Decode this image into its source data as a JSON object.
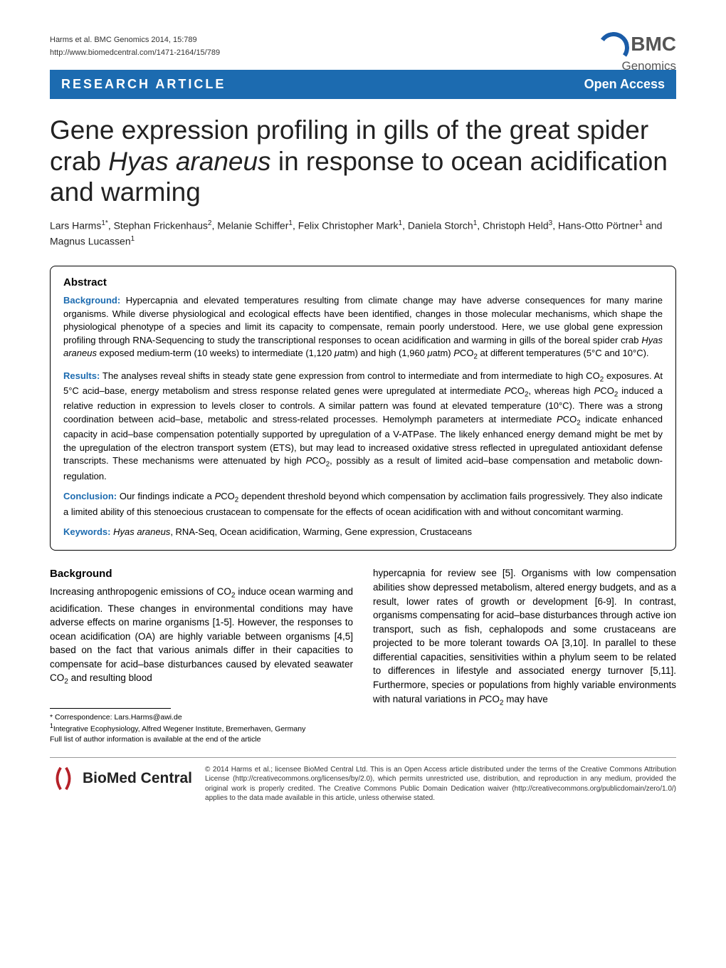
{
  "meta": {
    "citation": "Harms et al. BMC Genomics 2014, 15:789",
    "url": "http://www.biomedcentral.com/1471-2164/15/789"
  },
  "logo": {
    "brand_prefix": "BMC",
    "brand_suffix": "Genomics",
    "arc_color": "#1a5ca8",
    "text_color": "#555555"
  },
  "banner": {
    "left": "RESEARCH ARTICLE",
    "right": "Open Access",
    "bg_color": "#1c6bb0",
    "text_color": "#ffffff"
  },
  "title": {
    "pre_italic": "Gene expression profiling in gills of the great spider crab ",
    "italic": "Hyas araneus",
    "post_italic": " in response to ocean acidification and warming",
    "fontsize": 37,
    "color": "#222222"
  },
  "authors_html": "Lars Harms<sup>1*</sup>, Stephan Frickenhaus<sup>2</sup>, Melanie Schiffer<sup>1</sup>, Felix Christopher Mark<sup>1</sup>, Daniela Storch<sup>1</sup>, Christoph Held<sup>3</sup>, Hans-Otto Pörtner<sup>1</sup> and Magnus Lucassen<sup>1</sup>",
  "abstract": {
    "heading": "Abstract",
    "label_color": "#1c6bb0",
    "background": {
      "label": "Background:",
      "text": " Hypercapnia and elevated temperatures resulting from climate change may have adverse consequences for many marine organisms. While diverse physiological and ecological effects have been identified, changes in those molecular mechanisms, which shape the physiological phenotype of a species and limit its capacity to compensate, remain poorly understood. Here, we use global gene expression profiling through RNA-Sequencing to study the transcriptional responses to ocean acidification and warming in gills of the boreal spider crab <em>Hyas araneus</em> exposed medium-term (10 weeks) to intermediate (1,120 <em>μ</em>atm) and high (1,960 <em>μ</em>atm) <em>P</em>CO<sub>2</sub> at different temperatures (5°C and 10°C)."
    },
    "results": {
      "label": "Results:",
      "text": " The analyses reveal shifts in steady state gene expression from control to intermediate and from intermediate to high CO<sub>2</sub> exposures. At 5°C acid–base, energy metabolism and stress response related genes were upregulated at intermediate <em>P</em>CO<sub>2</sub>, whereas high <em>P</em>CO<sub>2</sub> induced a relative reduction in expression to levels closer to controls. A similar pattern was found at elevated temperature (10°C). There was a strong coordination between acid–base, metabolic and stress-related processes. Hemolymph parameters at intermediate <em>P</em>CO<sub>2</sub> indicate enhanced capacity in acid–base compensation potentially supported by upregulation of a V-ATPase. The likely enhanced energy demand might be met by the upregulation of the electron transport system (ETS), but may lead to increased oxidative stress reflected in upregulated antioxidant defense transcripts. These mechanisms were attenuated by high <em>P</em>CO<sub>2</sub>, possibly as a result of limited acid–base compensation and metabolic down-regulation."
    },
    "conclusion": {
      "label": "Conclusion:",
      "text": " Our findings indicate a <em>P</em>CO<sub>2</sub> dependent threshold beyond which compensation by acclimation fails progressively. They also indicate a limited ability of this stenoecious crustacean to compensate for the effects of ocean acidification with and without concomitant warming."
    },
    "keywords": {
      "label": "Keywords:",
      "text": " <em>Hyas araneus</em>, RNA-Seq, Ocean acidification, Warming, Gene expression, Crustaceans"
    }
  },
  "body": {
    "heading": "Background",
    "col1_html": "Increasing anthropogenic emissions of CO<sub>2</sub> induce ocean warming and acidification. These changes in environmental conditions may have adverse effects on marine organisms [1-5]. However, the responses to ocean acidification (OA) are highly variable between organisms [4,5] based on the fact that various animals differ in their capacities to compensate for acid–base disturbances caused by elevated seawater CO<sub>2</sub> and resulting blood",
    "col2_html": "hypercapnia for review see [5]. Organisms with low compensation abilities show depressed metabolism, altered energy budgets, and as a result, lower rates of growth or development [6-9]. In contrast, organisms compensating for acid–base disturbances through active ion transport, such as fish, cephalopods and some crustaceans are projected to be more tolerant towards OA [3,10]. In parallel to these differential capacities, sensitivities within a phylum seem to be related to differences in lifestyle and associated energy turnover [5,11]. Furthermore, species or populations from highly variable environments with natural variations in <em>P</em>CO<sub>2</sub> may have"
  },
  "correspondence": {
    "line1": "* Correspondence: Lars.Harms@awi.de",
    "line2": "<sup>1</sup>Integrative Ecophysiology, Alfred Wegener Institute, Bremerhaven, Germany",
    "line3": "Full list of author information is available at the end of the article"
  },
  "footer": {
    "logo_text": "BioMed Central",
    "paren_color": "#b52028",
    "license": "© 2014 Harms et al.; licensee BioMed Central Ltd. This is an Open Access article distributed under the terms of the Creative Commons Attribution License (http://creativecommons.org/licenses/by/2.0), which permits unrestricted use, distribution, and reproduction in any medium, provided the original work is properly credited. The Creative Commons Public Domain Dedication waiver (http://creativecommons.org/publicdomain/zero/1.0/) applies to the data made available in this article, unless otherwise stated."
  }
}
